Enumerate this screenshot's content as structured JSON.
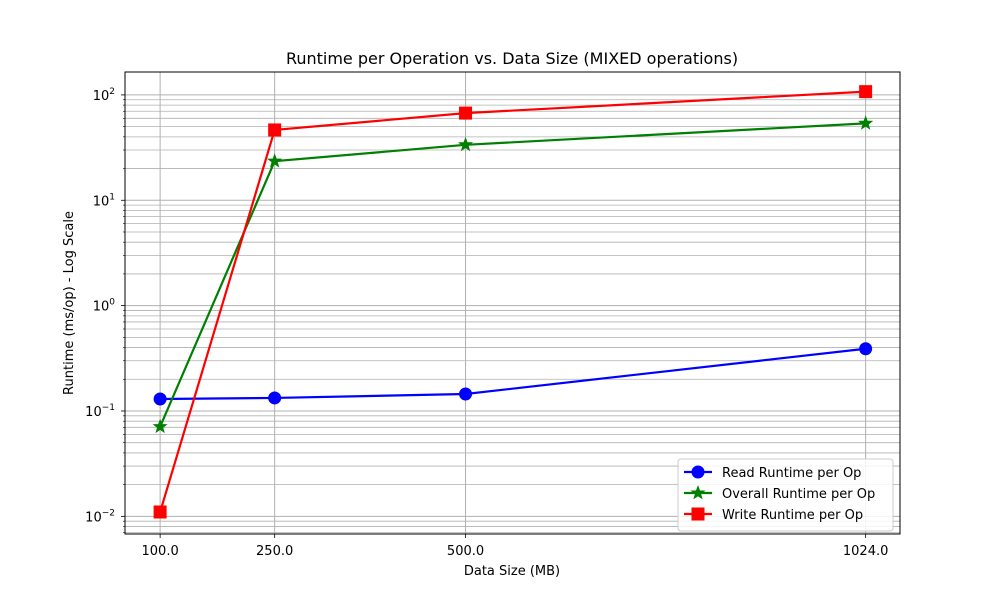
{
  "chart_data": {
    "type": "line",
    "title": "Runtime per Operation vs. Data Size (MIXED operations)",
    "xlabel": "Data Size (MB)",
    "ylabel": "Runtime (ms/op) - Log Scale",
    "x": [
      100.0,
      250.0,
      500.0,
      1024.0
    ],
    "x_tick_labels": [
      "100.0",
      "250.0",
      "500.0",
      "1024.0"
    ],
    "xlim": [
      54,
      1069
    ],
    "y_scale": "log",
    "ylim": [
      0.0068,
      165
    ],
    "y_ticks": [
      {
        "value": 0.01,
        "base": "10",
        "exp": "−2"
      },
      {
        "value": 0.1,
        "base": "10",
        "exp": "−1"
      },
      {
        "value": 1,
        "base": "10",
        "exp": "0"
      },
      {
        "value": 10,
        "base": "10",
        "exp": "1"
      },
      {
        "value": 100,
        "base": "10",
        "exp": "2"
      }
    ],
    "grid": true,
    "legend_position": "lower-right",
    "series": [
      {
        "name": "Read Runtime per Op",
        "color": "#0000ff",
        "marker": "circle",
        "values": [
          0.13,
          0.133,
          0.145,
          0.39
        ]
      },
      {
        "name": "Overall Runtime per Op",
        "color": "#008000",
        "marker": "star",
        "values": [
          0.071,
          23.5,
          33.6,
          53.7
        ]
      },
      {
        "name": "Write Runtime per Op",
        "color": "#ff0000",
        "marker": "square",
        "values": [
          0.011,
          46.5,
          67.2,
          107.4
        ]
      }
    ]
  }
}
